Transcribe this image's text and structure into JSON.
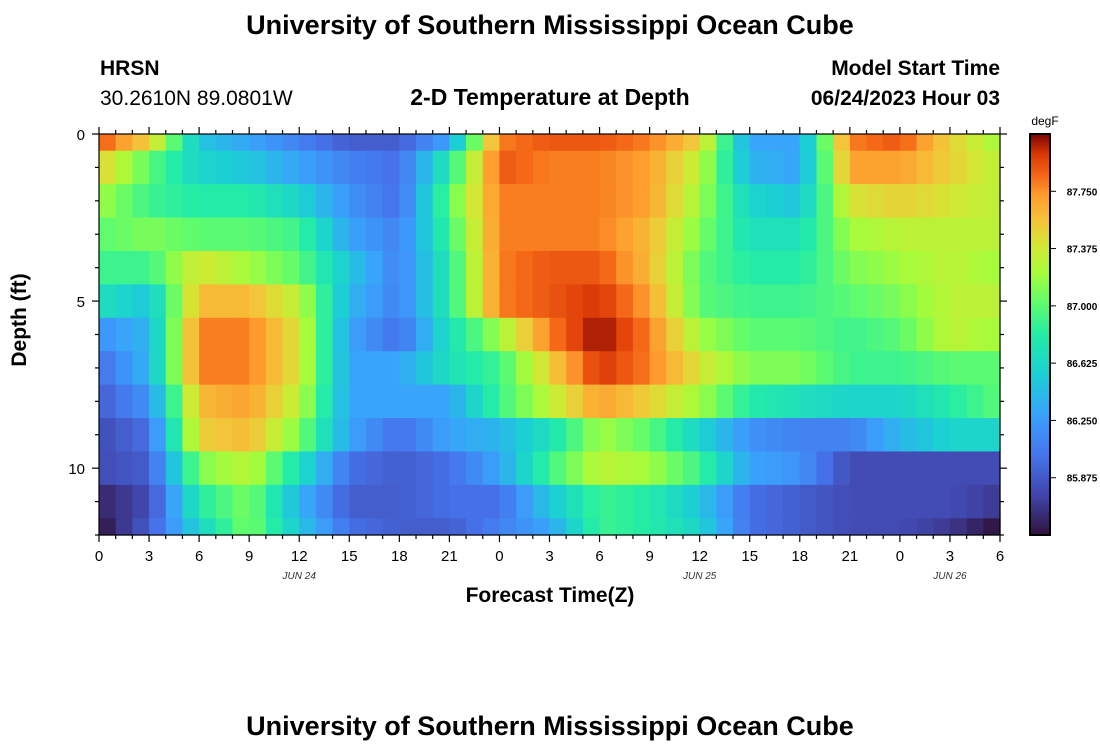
{
  "header": {
    "title": "University of Southern Mississippi Ocean Cube",
    "station": "HRSN",
    "coords": "30.2610N  89.0801W",
    "subtitle": "2-D Temperature at Depth",
    "model_label": "Model Start Time",
    "model_time": "06/24/2023 Hour 03"
  },
  "footer": {
    "title": "University of Southern Mississippi Ocean Cube"
  },
  "chart_data": {
    "type": "heatmap",
    "title": "2-D Temperature at Depth",
    "xlabel": "Forecast Time(Z)",
    "ylabel": "Depth (ft)",
    "x_ticks": [
      "0",
      "3",
      "6",
      "9",
      "12",
      "15",
      "18",
      "21",
      "0",
      "3",
      "6",
      "9",
      "12",
      "15",
      "18",
      "21",
      "0",
      "3",
      "6"
    ],
    "x_range_hours": [
      0,
      54
    ],
    "date_labels": [
      {
        "text": "JUN 24",
        "hour": 12
      },
      {
        "text": "JUN 25",
        "hour": 36
      },
      {
        "text": "JUN 26",
        "hour": 51
      }
    ],
    "y_ticks": [
      "0",
      "5",
      "10"
    ],
    "y_range_ft": [
      0,
      12
    ],
    "colorbar": {
      "unit": "degF",
      "ticks": [
        "87.750",
        "87.375",
        "87.000",
        "86.625",
        "86.250",
        "85.875"
      ],
      "tick_values": [
        87.75,
        87.375,
        87.0,
        86.625,
        86.25,
        85.875
      ],
      "range": [
        85.5,
        88.125
      ]
    },
    "depth_rows_ft": [
      0,
      1,
      2,
      3,
      4,
      5,
      6,
      7,
      8,
      9,
      10,
      11,
      12
    ],
    "hour_columns": [
      0,
      3,
      6,
      9,
      12,
      15,
      18,
      21,
      24,
      27,
      30,
      33,
      36,
      39,
      42,
      45,
      48,
      51,
      54
    ],
    "values": [
      [
        87.9,
        87.5,
        86.5,
        86.3,
        86.1,
        85.9,
        85.9,
        86.3,
        87.8,
        87.9,
        87.9,
        87.8,
        87.5,
        86.3,
        86.3,
        87.8,
        87.9,
        87.5,
        87.2
      ],
      [
        87.5,
        87.0,
        86.6,
        86.5,
        86.3,
        86.1,
        86.0,
        86.8,
        87.9,
        87.8,
        87.8,
        87.7,
        87.3,
        86.4,
        86.3,
        87.7,
        87.7,
        87.5,
        87.3
      ],
      [
        87.2,
        86.9,
        86.8,
        86.8,
        86.6,
        86.2,
        86.0,
        87.0,
        87.8,
        87.8,
        87.8,
        87.7,
        87.2,
        86.6,
        86.5,
        87.4,
        87.5,
        87.4,
        87.3
      ],
      [
        87.0,
        87.1,
        87.0,
        87.0,
        86.9,
        86.3,
        86.1,
        86.9,
        87.8,
        87.8,
        87.8,
        87.6,
        87.1,
        86.7,
        86.7,
        87.2,
        87.3,
        87.3,
        87.3
      ],
      [
        86.9,
        86.9,
        87.4,
        87.2,
        87.0,
        86.5,
        86.1,
        86.8,
        87.8,
        87.9,
        87.9,
        87.6,
        87.0,
        86.8,
        86.8,
        87.1,
        87.2,
        87.3,
        87.2
      ],
      [
        86.7,
        86.5,
        87.6,
        87.6,
        87.3,
        86.4,
        86.1,
        86.8,
        87.8,
        87.9,
        88.0,
        87.7,
        87.0,
        86.9,
        86.9,
        87.0,
        87.1,
        87.3,
        87.3
      ],
      [
        86.2,
        86.4,
        87.8,
        87.8,
        87.4,
        86.3,
        86.0,
        86.7,
        87.2,
        87.8,
        88.1,
        87.8,
        87.2,
        87.0,
        87.0,
        86.9,
        87.0,
        87.3,
        87.2
      ],
      [
        86.0,
        86.4,
        87.8,
        87.8,
        87.4,
        86.3,
        86.3,
        86.7,
        86.9,
        87.5,
        88.0,
        87.8,
        87.4,
        87.1,
        87.1,
        86.9,
        86.9,
        87.0,
        87.0
      ],
      [
        85.9,
        86.2,
        87.6,
        87.7,
        87.3,
        86.3,
        86.3,
        86.3,
        86.9,
        87.3,
        87.7,
        87.5,
        87.2,
        86.8,
        86.7,
        86.6,
        86.6,
        86.8,
        87.0
      ],
      [
        85.8,
        86.0,
        87.5,
        87.6,
        87.1,
        86.3,
        86.0,
        86.3,
        86.4,
        86.7,
        87.2,
        87.0,
        86.6,
        86.2,
        86.1,
        86.1,
        86.4,
        86.6,
        86.6
      ],
      [
        85.8,
        85.9,
        87.1,
        87.3,
        86.7,
        86.0,
        85.9,
        86.0,
        86.3,
        86.9,
        87.3,
        87.2,
        86.9,
        86.3,
        86.2,
        85.8,
        85.8,
        85.8,
        85.8
      ],
      [
        85.6,
        85.8,
        86.8,
        87.1,
        86.4,
        85.9,
        85.9,
        86.0,
        86.0,
        86.5,
        86.9,
        86.8,
        86.5,
        86.0,
        85.9,
        85.8,
        85.8,
        85.8,
        85.7
      ],
      [
        85.5,
        85.9,
        86.6,
        87.1,
        86.5,
        86.0,
        85.9,
        85.9,
        86.1,
        86.3,
        86.9,
        86.8,
        86.6,
        86.0,
        85.9,
        85.8,
        85.8,
        85.7,
        85.5
      ]
    ]
  }
}
